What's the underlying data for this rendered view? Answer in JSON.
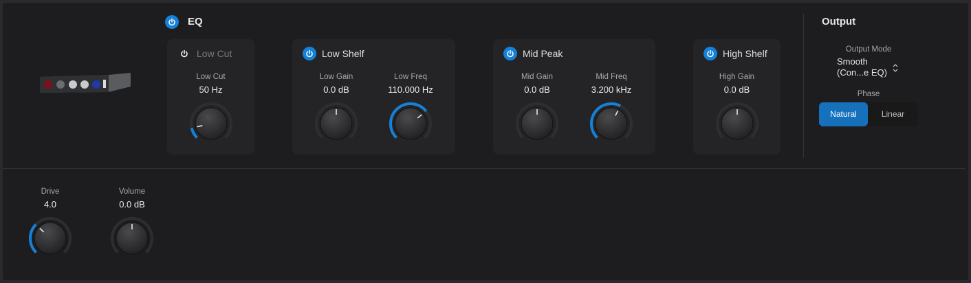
{
  "accent": "#1581d8",
  "eq": {
    "title": "EQ",
    "enabled": true
  },
  "bands": [
    {
      "title": "Low Cut",
      "enabled": false,
      "knobs": [
        {
          "label": "Low Cut",
          "value": "50 Hz",
          "level": 0.12
        }
      ]
    },
    {
      "title": "Low Shelf",
      "enabled": true,
      "knobs": [
        {
          "label": "Low Gain",
          "value": "0.0 dB",
          "level": 0.5
        },
        {
          "label": "Low Freq",
          "value": "110.000 Hz",
          "level": 0.69
        }
      ]
    },
    {
      "title": "Mid Peak",
      "enabled": true,
      "knobs": [
        {
          "label": "Mid Gain",
          "value": "0.0 dB",
          "level": 0.5
        },
        {
          "label": "Mid Freq",
          "value": "3.200 kHz",
          "level": 0.6
        }
      ]
    },
    {
      "title": "High Shelf",
      "enabled": true,
      "knobs": [
        {
          "label": "High Gain",
          "value": "0.0 dB",
          "level": 0.5
        }
      ]
    }
  ],
  "output": {
    "title": "Output",
    "mode_label": "Output Mode",
    "mode_line1": "Smooth",
    "mode_line2": "(Con...e EQ)",
    "phase_label": "Phase",
    "phase_options": [
      "Natural",
      "Linear"
    ],
    "phase_selected": "Natural"
  },
  "bottom": {
    "knobs": [
      {
        "label": "Drive",
        "value": "4.0",
        "level": 0.33,
        "bipolar": false
      },
      {
        "label": "Volume",
        "value": "0.0 dB",
        "level": 0.5,
        "bipolar": true
      }
    ]
  }
}
